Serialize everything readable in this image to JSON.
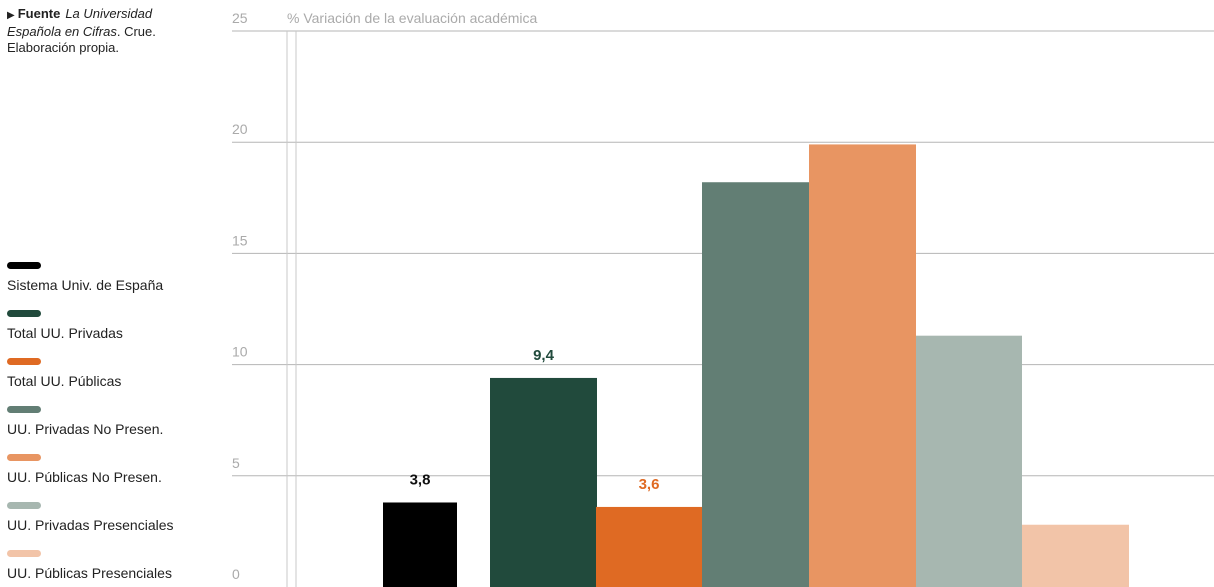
{
  "source": {
    "marker": "▶",
    "label": "Fuente",
    "title": "La Universidad Española en Cifras",
    "rest": ". Crue. Elaboración propia."
  },
  "chart_data": {
    "type": "bar",
    "title": "% Variación de la evaluación académica",
    "xlabel": "",
    "ylabel": "",
    "ylim": [
      0,
      25
    ],
    "yticks": [
      0,
      5,
      10,
      15,
      20,
      25
    ],
    "grid": true,
    "legend_placement": "left",
    "categories": [
      "Sistema Univ. de España",
      "Total UU. Privadas",
      "Total UU. Públicas",
      "UU. Privadas No Presen.",
      "UU. Públicas No Presen.",
      "UU. Privadas Presenciales",
      "UU. Públicas Presenciales"
    ],
    "values": [
      3.8,
      9.4,
      3.6,
      18.2,
      19.9,
      11.3,
      2.8
    ],
    "value_labels": [
      "3,8",
      "9,4",
      "3,6",
      "",
      "",
      "",
      ""
    ],
    "colors": [
      "#000000",
      "#214a3c",
      "#df6a23",
      "#627e74",
      "#e89562",
      "#a7b7b0",
      "#f2c4a8"
    ],
    "label_colors": [
      "#111111",
      "#214a3c",
      "#df6a23",
      "",
      "",
      "",
      ""
    ]
  }
}
